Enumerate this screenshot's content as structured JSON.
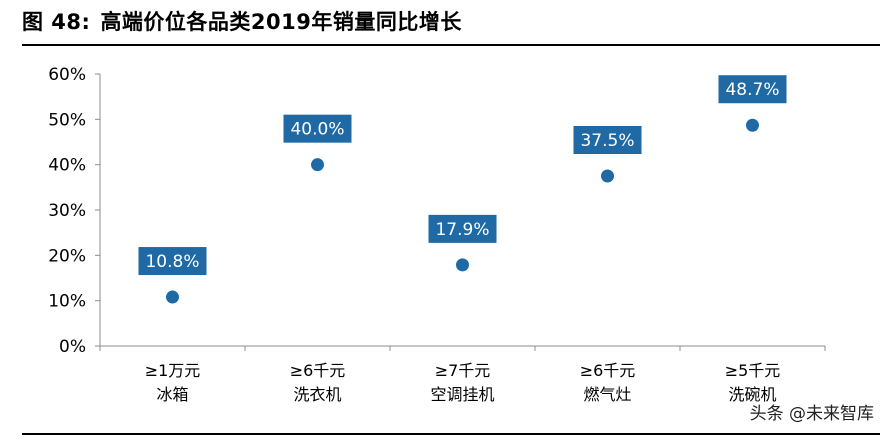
{
  "figure": {
    "label": "图 48:",
    "title": "高端价位各品类2019年销量同比增长"
  },
  "watermark": "头条 @未来智库",
  "colors": {
    "marker": "#1f6aa5",
    "label_bg": "#1f6aa5",
    "label_text": "#ffffff",
    "axis": "#8c8c8c"
  },
  "chart_data": {
    "type": "scatter",
    "categories": [
      [
        "≥1万元",
        "冰箱"
      ],
      [
        "≥6千元",
        "洗衣机"
      ],
      [
        "≥7千元",
        "空调挂机"
      ],
      [
        "≥6千元",
        "燃气灶"
      ],
      [
        "≥5千元",
        "洗碗机"
      ]
    ],
    "values": [
      10.8,
      40.0,
      17.9,
      37.5,
      48.7
    ],
    "data_labels": [
      "10.8%",
      "40.0%",
      "17.9%",
      "37.5%",
      "48.7%"
    ],
    "ylim": [
      0,
      60
    ],
    "yticks": [
      0,
      10,
      20,
      30,
      40,
      50,
      60
    ],
    "ytick_labels": [
      "0%",
      "10%",
      "20%",
      "30%",
      "40%",
      "50%",
      "60%"
    ],
    "grid": false,
    "legend": "none"
  }
}
